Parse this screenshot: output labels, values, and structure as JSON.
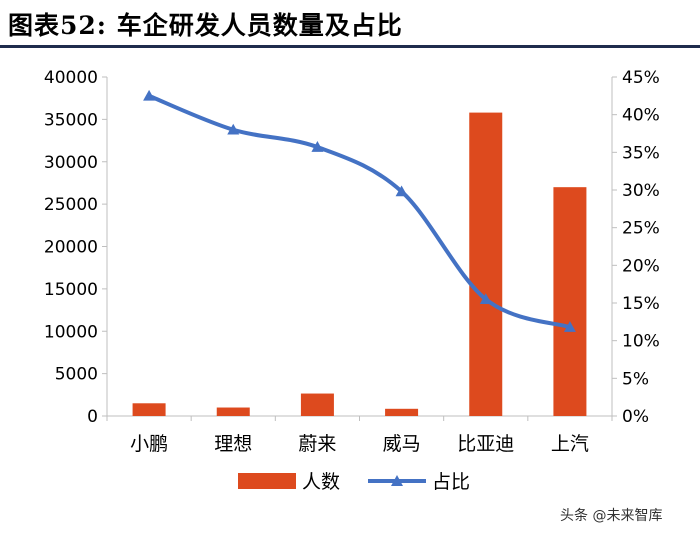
{
  "header": {
    "title": "图表52:  车企研发人员数量及占比"
  },
  "watermark": "头条 @未来智库",
  "colors": {
    "bar": "#dd4a1e",
    "line": "#4472c4",
    "axis": "#bfbfbf",
    "text": "#000000",
    "rule": "#1f2c4d"
  },
  "chart_data": {
    "type": "bar",
    "title": "",
    "categories": [
      "小鹏",
      "理想",
      "蔚来",
      "威马",
      "比亚迪",
      "上汽"
    ],
    "series": [
      {
        "name": "人数",
        "type": "bar",
        "axis": "left",
        "values": [
          1500,
          1000,
          2650,
          850,
          35800,
          27000
        ]
      },
      {
        "name": "占比",
        "type": "line",
        "axis": "right",
        "values": [
          0.425,
          0.38,
          0.357,
          0.298,
          0.155,
          0.118
        ]
      }
    ],
    "yleft": {
      "ylim": [
        0,
        40000
      ],
      "ticks": [
        0,
        5000,
        10000,
        15000,
        20000,
        25000,
        30000,
        35000,
        40000
      ],
      "tick_labels": [
        "0",
        "5000",
        "10000",
        "15000",
        "20000",
        "25000",
        "30000",
        "35000",
        "40000"
      ]
    },
    "yright": {
      "ylim": [
        0,
        0.45
      ],
      "ticks": [
        0,
        0.05,
        0.1,
        0.15,
        0.2,
        0.25,
        0.3,
        0.35,
        0.4,
        0.45
      ],
      "tick_labels": [
        "0%",
        "5%",
        "10%",
        "15%",
        "20%",
        "25%",
        "30%",
        "35%",
        "40%",
        "45%"
      ]
    },
    "grid": false,
    "legend": "bottom"
  }
}
